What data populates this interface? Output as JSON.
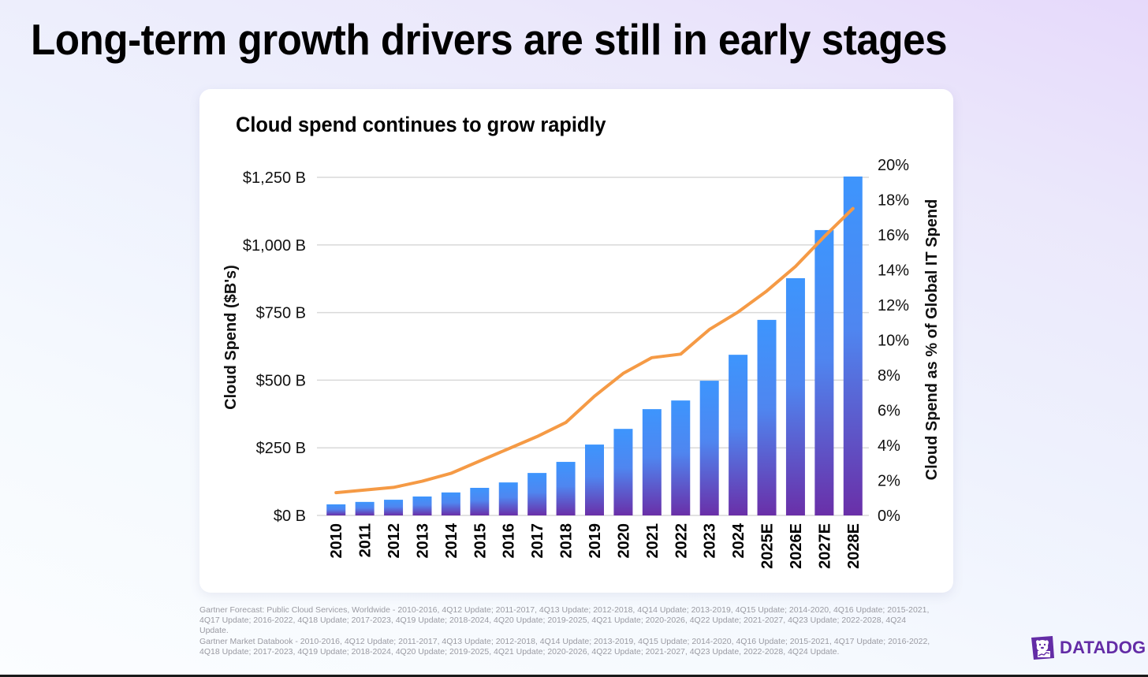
{
  "page": {
    "title": "Long-term growth drivers are still in early stages"
  },
  "card": {
    "title": "Cloud spend continues to grow rapidly"
  },
  "colors": {
    "bar_top": "#3d95fd",
    "bar_bottom": "#6a2fa8",
    "line": "#f59a45",
    "grid": "#d9d9d9",
    "brand": "#632ca6"
  },
  "chart_data": {
    "type": "bar",
    "title": "Cloud spend continues to grow rapidly",
    "categories": [
      "2010",
      "2011",
      "2012",
      "2013",
      "2014",
      "2015",
      "2016",
      "2017",
      "2018",
      "2019",
      "2020",
      "2021",
      "2022",
      "2023",
      "2024",
      "2025E",
      "2026E",
      "2027E",
      "2028E"
    ],
    "series": [
      {
        "name": "Cloud Spend ($B's)",
        "type": "bar",
        "axis": "left",
        "values": [
          41,
          50,
          58,
          70,
          85,
          102,
          122,
          157,
          198,
          262,
          320,
          393,
          425,
          498,
          594,
          723,
          877,
          1055,
          1253
        ]
      },
      {
        "name": "Cloud Spend as % of Global IT Spend",
        "type": "line",
        "axis": "right",
        "values": [
          1.3,
          1.45,
          1.6,
          1.95,
          2.4,
          3.1,
          3.8,
          4.5,
          5.3,
          6.8,
          8.1,
          9.0,
          9.2,
          10.6,
          11.6,
          12.8,
          14.2,
          15.9,
          17.5
        ]
      }
    ],
    "ylabel": "Cloud Spend ($B's)",
    "y2label": "Cloud Spend as % of Global IT Spend",
    "xlabel": "",
    "ylim": [
      0,
      1250
    ],
    "y2lim": [
      0,
      20
    ],
    "yticks": [
      0,
      250,
      500,
      750,
      1000,
      1250
    ],
    "ytick_labels": [
      "$0 B",
      "$250 B",
      "$500 B",
      "$750 B",
      "$1,000 B",
      "$1,250 B"
    ],
    "y2ticks": [
      0,
      2,
      4,
      6,
      8,
      10,
      12,
      14,
      16,
      18,
      20
    ],
    "y2tick_labels": [
      "0%",
      "2%",
      "4%",
      "6%",
      "8%",
      "10%",
      "12%",
      "14%",
      "16%",
      "18%",
      "20%"
    ],
    "grid": true,
    "legend": "none"
  },
  "footnote": {
    "line1": "Gartner Forecast: Public Cloud Services, Worldwide - 2010-2016, 4Q12 Update; 2011-2017, 4Q13 Update; 2012-2018, 4Q14 Update; 2013-2019, 4Q15 Update; 2014-2020, 4Q16 Update; 2015-2021, 4Q17 Update; 2016-2022, 4Q18 Update; 2017-2023, 4Q19 Update; 2018-2024, 4Q20 Update; 2019-2025, 4Q21 Update; 2020-2026, 4Q22 Update; 2021-2027, 4Q23 Update; 2022-2028, 4Q24 Update.",
    "line2": "Gartner Market Databook - 2010-2016, 4Q12 Update; 2011-2017, 4Q13 Update; 2012-2018, 4Q14 Update; 2013-2019, 4Q15 Update; 2014-2020, 4Q16 Update; 2015-2021, 4Q17 Update; 2016-2022, 4Q18 Update; 2017-2023, 4Q19 Update; 2018-2024, 4Q20 Update; 2019-2025, 4Q21 Update;  2020-2026, 4Q22 Update; 2021-2027, 4Q23 Update, 2022-2028, 4Q24 Update."
  },
  "logo": {
    "text": "DATADOG",
    "icon": "datadog-dog-icon"
  }
}
